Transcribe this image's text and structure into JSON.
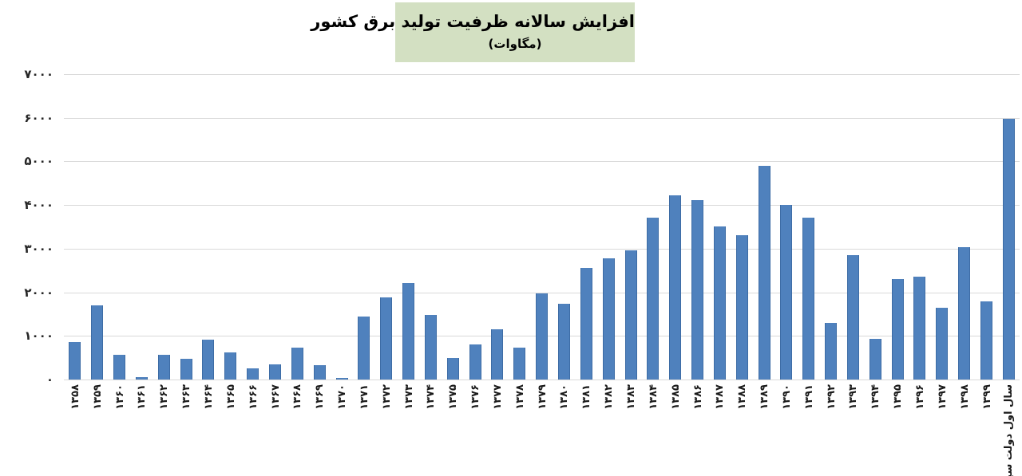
{
  "title": {
    "line1": "افزایش سالانه ظرفیت تولید برق کشور",
    "line2": "(مگاوات)"
  },
  "colors": {
    "bar_fill": "#4f81bd",
    "bar_border": "#3d6ca5",
    "title_background": "#d3e0c2",
    "gridline": "#d9d9d9",
    "axis_text": "#262626",
    "background": "#ffffff"
  },
  "y_axis": {
    "tick_labels_top_to_bottom": [
      "۷۰۰۰",
      "۶۰۰۰",
      "۵۰۰۰",
      "۴۰۰۰",
      "۳۰۰۰",
      "۲۰۰۰",
      "۱۰۰۰",
      "۰"
    ],
    "min": 0,
    "max": 7000,
    "step": 1000
  },
  "chart_data": {
    "type": "bar",
    "title": "افزایش سالانه ظرفیت تولید برق کشور",
    "subtitle": "(مگاوات)",
    "ylabel": "",
    "xlabel": "",
    "ylim": [
      0,
      7000
    ],
    "grid": true,
    "legend": false,
    "categories": [
      "۱۳۵۸",
      "۱۳۵۹",
      "۱۳۶۰",
      "۱۳۶۱",
      "۱۳۶۲",
      "۱۳۶۳",
      "۱۳۶۴",
      "۱۳۶۵",
      "۱۳۶۶",
      "۱۳۶۷",
      "۱۳۶۸",
      "۱۳۶۹",
      "۱۳۷۰",
      "۱۳۷۱",
      "۱۳۷۲",
      "۱۳۷۳",
      "۱۳۷۴",
      "۱۳۷۵",
      "۱۳۷۶",
      "۱۳۷۷",
      "۱۳۷۸",
      "۱۳۷۹",
      "۱۳۸۰",
      "۱۳۸۱",
      "۱۳۸۲",
      "۱۳۸۳",
      "۱۳۸۴",
      "۱۳۸۵",
      "۱۳۸۶",
      "۱۳۸۷",
      "۱۳۸۸",
      "۱۳۸۹",
      "۱۳۹۰",
      "۱۳۹۱",
      "۱۳۹۲",
      "۱۳۹۳",
      "۱۳۹۴",
      "۱۳۹۵",
      "۱۳۹۶",
      "۱۳۹۷",
      "۱۳۹۸",
      "۱۳۹۹",
      "سال اول دولت سیزدهم"
    ],
    "values": [
      860,
      1700,
      575,
      60,
      575,
      470,
      920,
      630,
      260,
      350,
      730,
      330,
      30,
      1450,
      1890,
      2210,
      1480,
      490,
      810,
      1150,
      740,
      1975,
      1730,
      2550,
      2780,
      2960,
      3710,
      4225,
      4110,
      3500,
      3300,
      4900,
      4000,
      3710,
      1300,
      2850,
      930,
      2300,
      2350,
      1650,
      3030,
      1790,
      5970
    ]
  }
}
